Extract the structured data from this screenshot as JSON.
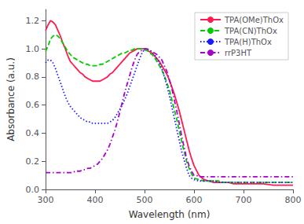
{
  "chart_data": {
    "type": "line",
    "xlabel": "Wavelength (nm)",
    "ylabel": "Absorbance (a.u.)",
    "xlim": [
      300,
      800
    ],
    "ylim": [
      0.0,
      1.28
    ],
    "xticks": [
      300,
      400,
      500,
      600,
      700,
      800
    ],
    "yticks": [
      {
        "value": 0.0,
        "label": "0.0"
      },
      0.2,
      0.4,
      0.6,
      0.8,
      {
        "value": 1.0,
        "label": "1.0"
      },
      1.2
    ],
    "grid": false,
    "legend": "upper right",
    "series": [
      {
        "name": "TPA(OMe)ThOx",
        "color": "#ff1a4f",
        "line_style": "solid",
        "x": [
          300,
          305,
          310,
          315,
          320,
          325,
          330,
          335,
          340,
          345,
          350,
          355,
          360,
          365,
          370,
          375,
          380,
          385,
          390,
          395,
          400,
          405,
          410,
          415,
          420,
          425,
          430,
          435,
          440,
          445,
          450,
          455,
          460,
          465,
          470,
          475,
          480,
          485,
          490,
          495,
          500,
          505,
          510,
          515,
          520,
          525,
          530,
          535,
          540,
          545,
          550,
          555,
          560,
          565,
          570,
          575,
          580,
          585,
          590,
          595,
          600,
          610,
          620,
          630,
          640,
          650,
          660,
          670,
          680,
          700,
          720,
          740,
          760,
          780,
          800
        ],
        "values": [
          1.13,
          1.17,
          1.2,
          1.19,
          1.17,
          1.13,
          1.09,
          1.04,
          1.0,
          0.95,
          0.91,
          0.89,
          0.87,
          0.85,
          0.83,
          0.82,
          0.8,
          0.79,
          0.78,
          0.77,
          0.77,
          0.77,
          0.77,
          0.78,
          0.79,
          0.8,
          0.82,
          0.83,
          0.85,
          0.87,
          0.89,
          0.91,
          0.93,
          0.95,
          0.97,
          0.98,
          0.99,
          1.0,
          1.0,
          1.0,
          1.0,
          0.99,
          0.98,
          0.97,
          0.95,
          0.93,
          0.91,
          0.88,
          0.85,
          0.82,
          0.78,
          0.73,
          0.68,
          0.62,
          0.56,
          0.49,
          0.42,
          0.35,
          0.28,
          0.22,
          0.17,
          0.1,
          0.07,
          0.06,
          0.05,
          0.05,
          0.05,
          0.05,
          0.04,
          0.04,
          0.04,
          0.04,
          0.03,
          0.03,
          0.03
        ]
      },
      {
        "name": "TPA(CN)ThOx",
        "color": "#00cc00",
        "line_style": "dashed",
        "x": [
          300,
          305,
          310,
          315,
          320,
          325,
          330,
          335,
          340,
          345,
          350,
          355,
          360,
          365,
          370,
          375,
          380,
          385,
          390,
          395,
          400,
          405,
          410,
          415,
          420,
          425,
          430,
          435,
          440,
          445,
          450,
          455,
          460,
          465,
          470,
          475,
          480,
          485,
          490,
          495,
          500,
          505,
          510,
          515,
          520,
          525,
          530,
          535,
          540,
          545,
          550,
          555,
          560,
          565,
          570,
          575,
          580,
          585,
          590,
          595,
          600,
          610,
          620,
          630,
          640,
          650,
          660,
          670,
          700,
          720,
          740,
          760,
          780,
          800
        ],
        "values": [
          0.98,
          1.02,
          1.07,
          1.09,
          1.1,
          1.09,
          1.07,
          1.04,
          1.01,
          0.98,
          0.96,
          0.94,
          0.93,
          0.92,
          0.91,
          0.9,
          0.89,
          0.89,
          0.88,
          0.88,
          0.88,
          0.88,
          0.89,
          0.89,
          0.9,
          0.91,
          0.92,
          0.93,
          0.94,
          0.95,
          0.96,
          0.97,
          0.97,
          0.98,
          0.99,
          0.99,
          1.0,
          1.0,
          1.0,
          1.0,
          0.99,
          0.99,
          0.97,
          0.96,
          0.94,
          0.91,
          0.88,
          0.85,
          0.81,
          0.76,
          0.71,
          0.64,
          0.57,
          0.5,
          0.42,
          0.34,
          0.27,
          0.2,
          0.15,
          0.11,
          0.08,
          0.07,
          0.06,
          0.06,
          0.06,
          0.06,
          0.05,
          0.05,
          0.05,
          0.05,
          0.05,
          0.05,
          0.05,
          0.05
        ]
      },
      {
        "name": "TPA(H)ThOx",
        "color": "#1a1aff",
        "line_style": "dotted",
        "x": [
          300,
          305,
          310,
          315,
          320,
          325,
          330,
          335,
          340,
          345,
          350,
          355,
          360,
          365,
          370,
          375,
          380,
          385,
          390,
          395,
          400,
          405,
          410,
          415,
          420,
          425,
          430,
          435,
          440,
          445,
          450,
          455,
          460,
          465,
          470,
          475,
          480,
          485,
          490,
          495,
          500,
          505,
          510,
          515,
          520,
          525,
          530,
          535,
          540,
          545,
          550,
          555,
          560,
          565,
          570,
          575,
          580,
          585,
          590,
          595,
          600,
          610,
          620,
          630,
          640,
          650,
          700,
          720,
          740,
          760,
          780,
          800
        ],
        "values": [
          0.9,
          0.92,
          0.92,
          0.9,
          0.86,
          0.81,
          0.76,
          0.71,
          0.66,
          0.62,
          0.59,
          0.57,
          0.55,
          0.53,
          0.51,
          0.5,
          0.49,
          0.48,
          0.48,
          0.47,
          0.47,
          0.47,
          0.47,
          0.47,
          0.47,
          0.47,
          0.48,
          0.49,
          0.51,
          0.54,
          0.57,
          0.6,
          0.64,
          0.68,
          0.73,
          0.78,
          0.83,
          0.88,
          0.93,
          0.97,
          1.0,
          1.0,
          0.99,
          0.98,
          0.96,
          0.93,
          0.9,
          0.86,
          0.8,
          0.74,
          0.67,
          0.59,
          0.51,
          0.43,
          0.35,
          0.27,
          0.21,
          0.15,
          0.1,
          0.08,
          0.07,
          0.06,
          0.06,
          0.06,
          0.06,
          0.05,
          0.05,
          0.05,
          0.05,
          0.05,
          0.05,
          0.05
        ]
      },
      {
        "name": "rrP3HT",
        "color": "#aa00cc",
        "line_style": "dashdot",
        "x": [
          300,
          305,
          310,
          315,
          320,
          325,
          330,
          335,
          340,
          345,
          350,
          355,
          360,
          365,
          370,
          375,
          380,
          385,
          390,
          395,
          400,
          405,
          410,
          415,
          420,
          425,
          430,
          435,
          440,
          445,
          450,
          455,
          460,
          465,
          470,
          475,
          480,
          485,
          490,
          495,
          500,
          505,
          510,
          515,
          520,
          525,
          530,
          535,
          540,
          545,
          550,
          555,
          560,
          565,
          570,
          575,
          580,
          585,
          590,
          595,
          600,
          605,
          610,
          620,
          630,
          640,
          650,
          660,
          700,
          720,
          740,
          760,
          780,
          800
        ],
        "values": [
          0.12,
          0.12,
          0.12,
          0.12,
          0.12,
          0.12,
          0.12,
          0.12,
          0.12,
          0.12,
          0.12,
          0.12,
          0.13,
          0.13,
          0.13,
          0.14,
          0.14,
          0.15,
          0.15,
          0.16,
          0.17,
          0.18,
          0.2,
          0.22,
          0.25,
          0.28,
          0.32,
          0.37,
          0.42,
          0.48,
          0.55,
          0.62,
          0.69,
          0.75,
          0.81,
          0.87,
          0.92,
          0.96,
          0.98,
          0.99,
          1.0,
          1.0,
          0.99,
          0.98,
          0.97,
          0.96,
          0.94,
          0.92,
          0.88,
          0.84,
          0.78,
          0.72,
          0.64,
          0.56,
          0.47,
          0.38,
          0.3,
          0.22,
          0.17,
          0.13,
          0.1,
          0.1,
          0.09,
          0.09,
          0.09,
          0.09,
          0.09,
          0.09,
          0.09,
          0.09,
          0.09,
          0.09,
          0.09,
          0.09
        ]
      }
    ]
  }
}
